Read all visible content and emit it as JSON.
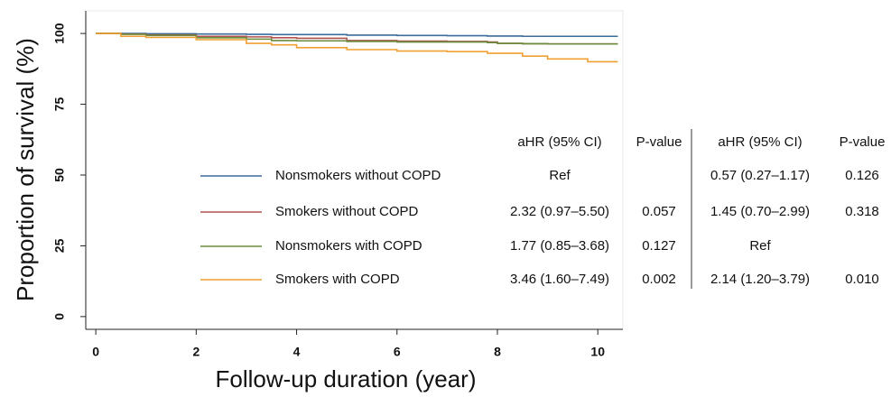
{
  "chart_data": {
    "type": "step",
    "x_label": "Follow-up duration (year)",
    "y_label": "Proportion of survival (%)",
    "x": [
      0,
      0.5,
      1,
      2,
      3,
      3.5,
      4,
      5,
      6,
      7,
      7.8,
      8,
      8.5,
      9,
      9.8,
      10.4
    ],
    "series": [
      {
        "name": "Nonsmokers without COPD",
        "color": "#3b6c9c",
        "values": [
          100,
          100,
          99.9,
          99.8,
          99.7,
          99.6,
          99.6,
          99.4,
          99.3,
          99.2,
          99.1,
          99.1,
          99,
          99,
          99,
          99
        ]
      },
      {
        "name": "Smokers without COPD",
        "color": "#b0524f",
        "values": [
          100,
          99.8,
          99.5,
          99,
          98.8,
          98.5,
          98.3,
          97.5,
          97.3,
          97.2,
          97,
          96.5,
          96.4,
          96.3,
          96.3,
          96.3
        ]
      },
      {
        "name": "Nonsmokers with COPD",
        "color": "#6a8c3c",
        "values": [
          100,
          99.7,
          99.3,
          98.5,
          98,
          97.5,
          97.4,
          97.2,
          97,
          97,
          96.8,
          96.5,
          96.4,
          96.3,
          96.3,
          96.3
        ]
      },
      {
        "name": "Smokers with COPD",
        "color": "#f0a032",
        "values": [
          100,
          99,
          98.6,
          97.8,
          96.5,
          96,
          95,
          94.3,
          93.8,
          93.6,
          93,
          93,
          92,
          91,
          90,
          90
        ]
      }
    ],
    "xlim": [
      -0.2,
      10.5
    ],
    "ylim": [
      -4.5,
      108
    ],
    "xticks": [
      0,
      2,
      4,
      6,
      8,
      10
    ],
    "yticks": [
      0,
      25,
      50,
      75,
      100
    ],
    "table": {
      "columns": [
        "aHR (95% CI)",
        "P-value",
        "aHR (95% CI)",
        "P-value"
      ],
      "rows": [
        [
          "Ref",
          null,
          "0.57 (0.27–1.17)",
          "0.126"
        ],
        [
          "2.32 (0.97–5.50)",
          "0.057",
          "1.45 (0.70–2.99)",
          "0.318"
        ],
        [
          "1.77 (0.85–3.68)",
          "0.127",
          "Ref",
          null
        ],
        [
          "3.46 (1.60–7.49)",
          "0.002",
          "2.14 (1.20–3.79)",
          "0.010"
        ]
      ]
    }
  }
}
